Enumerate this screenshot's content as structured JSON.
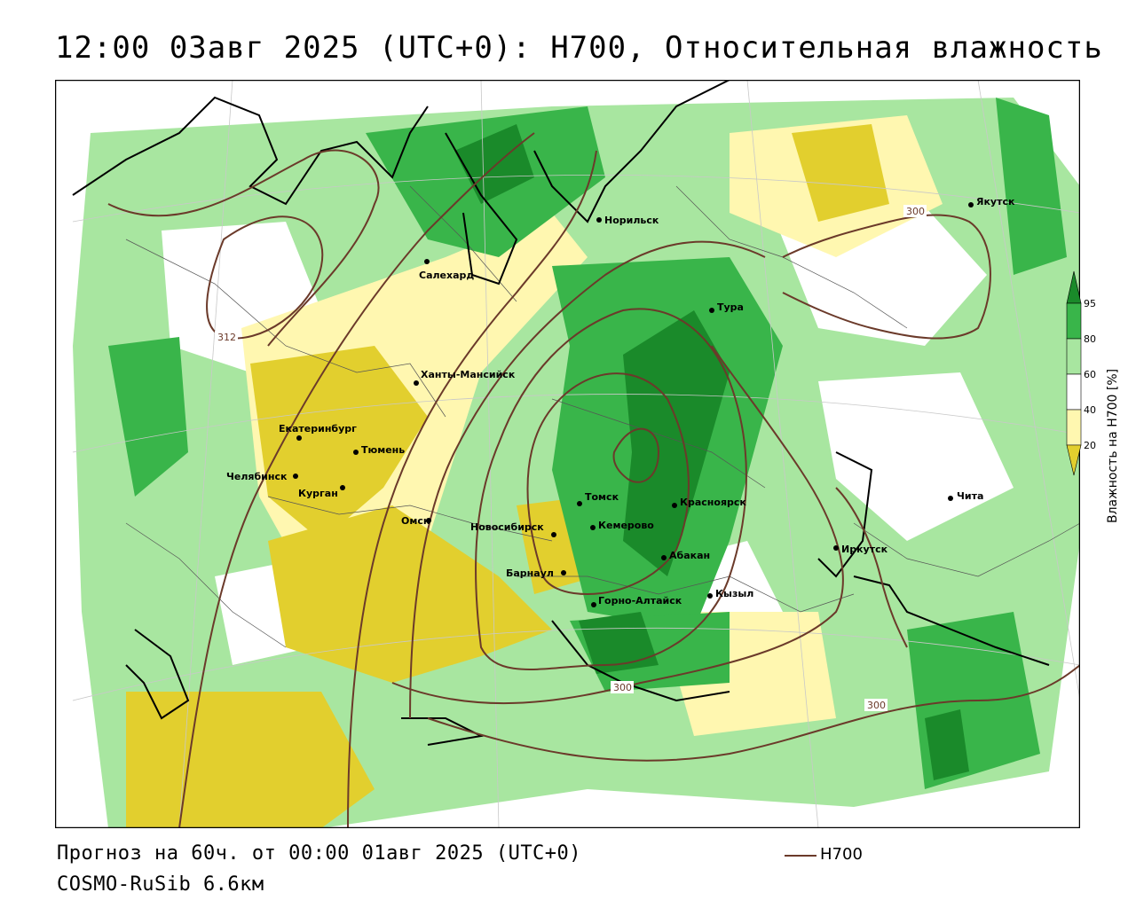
{
  "title": "12:00 03авг 2025 (UTC+0): H700, Относительная влажность",
  "footer": {
    "forecast": "Прогноз на 60ч. от 00:00 01авг 2025 (UTC+0)",
    "model": "COSMO-RuSib 6.6км"
  },
  "legend": {
    "line_label": "H700",
    "line_color": "#6b3a2a"
  },
  "colorbar": {
    "label": "Влажность на H700 [%]",
    "ticks": [
      "95",
      "80",
      "60",
      "40",
      "20"
    ],
    "colors": {
      "very_wet": "#1a8a2a",
      "wet": "#39b54a",
      "moist": "#a8e6a0",
      "neutral": "#ffffff",
      "dry": "#fff7b0",
      "very_dry": "#e2cf2e"
    }
  },
  "contours": {
    "labels": [
      "312",
      "300",
      "300",
      "300"
    ]
  },
  "cities": [
    {
      "name": "Норильск"
    },
    {
      "name": "Якутск"
    },
    {
      "name": "Салехард"
    },
    {
      "name": "Тура"
    },
    {
      "name": "Ханты-Мансийск"
    },
    {
      "name": "Екатеринбург"
    },
    {
      "name": "Тюмень"
    },
    {
      "name": "Челябинск"
    },
    {
      "name": "Курган"
    },
    {
      "name": "Томск"
    },
    {
      "name": "Красноярск"
    },
    {
      "name": "Чита"
    },
    {
      "name": "Омск"
    },
    {
      "name": "Новосибирск"
    },
    {
      "name": "Кемерово"
    },
    {
      "name": "Иркутск"
    },
    {
      "name": "Абакан"
    },
    {
      "name": "Барнаул"
    },
    {
      "name": "Кызыл"
    },
    {
      "name": "Горно-Алтайск"
    }
  ]
}
